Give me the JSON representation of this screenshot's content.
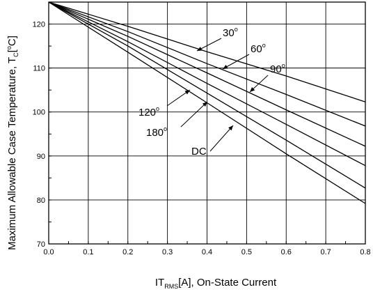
{
  "chart_data": {
    "type": "line",
    "title": "",
    "xlabel": {
      "main": "IT",
      "sub": "RMS",
      "rest": "[A], On-State Current"
    },
    "ylabel": {
      "main": "Maximum Allowable Case Temperature, T",
      "sub": "C",
      "rest": "[",
      "degree": "o",
      "unit": "C]"
    },
    "xlim": [
      0.0,
      0.8
    ],
    "ylim": [
      70,
      125
    ],
    "x_ticks": [
      "0.0",
      "0.1",
      "0.2",
      "0.3",
      "0.4",
      "0.5",
      "0.6",
      "0.7",
      "0.8"
    ],
    "y_ticks": [
      "70",
      "80",
      "90",
      "100",
      "110",
      "120"
    ],
    "grid": true,
    "series": [
      {
        "name": "30",
        "degree": "o",
        "x": [
          0.0,
          0.2,
          0.4,
          0.6,
          0.8
        ],
        "y": [
          125,
          119.5,
          113.7,
          108.2,
          102.3
        ]
      },
      {
        "name": "60",
        "degree": "o",
        "x": [
          0.0,
          0.2,
          0.4,
          0.6,
          0.8
        ],
        "y": [
          125,
          118.3,
          111.0,
          104.0,
          96.8
        ]
      },
      {
        "name": "90",
        "degree": "o",
        "x": [
          0.0,
          0.2,
          0.4,
          0.6,
          0.8
        ],
        "y": [
          125,
          117.2,
          108.9,
          100.5,
          92.2
        ]
      },
      {
        "name": "120",
        "degree": "o",
        "x": [
          0.0,
          0.2,
          0.4,
          0.6,
          0.8
        ],
        "y": [
          125,
          116.0,
          106.5,
          97.2,
          87.8
        ]
      },
      {
        "name": "180",
        "degree": "o",
        "x": [
          0.0,
          0.2,
          0.4,
          0.6,
          0.8
        ],
        "y": [
          125,
          115.0,
          104.3,
          93.6,
          82.7
        ]
      },
      {
        "name": "DC",
        "degree": "",
        "x": [
          0.0,
          0.2,
          0.4,
          0.6,
          0.8
        ],
        "y": [
          125,
          113.6,
          102.1,
          90.5,
          79.2
        ]
      }
    ]
  }
}
